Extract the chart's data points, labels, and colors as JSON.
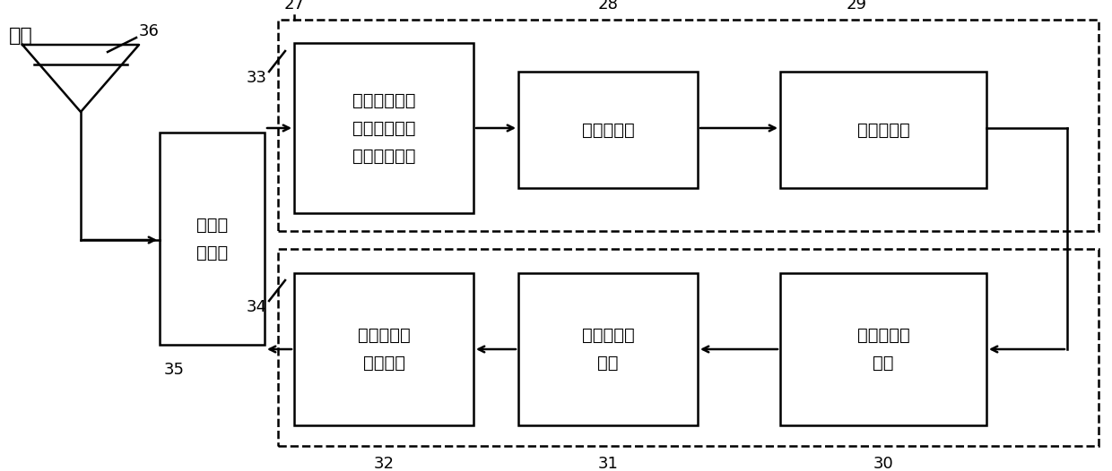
{
  "bg_color": "#ffffff",
  "line_color": "#000000",
  "font_size_label": 14,
  "font_size_number": 13,
  "antenna_label": "天线",
  "antenna_number": "36",
  "transceiver_label": "收发转\n换电路",
  "transceiver_number": "35",
  "box27_label": "比值法固支梁\n微纳微波检测\n解调单片系统",
  "box27_number": "27",
  "box28_label": "信号存储器",
  "box28_number": "28",
  "box29_label": "信号分析器",
  "box29_number": "29",
  "box30_label": "微波信号重\n构器",
  "box30_number": "30",
  "box31_label": "微波信号调\n制器",
  "box31_number": "31",
  "box32_label": "微波信号功\n率放大器",
  "box32_number": "32",
  "label33": "33",
  "label34": "34"
}
